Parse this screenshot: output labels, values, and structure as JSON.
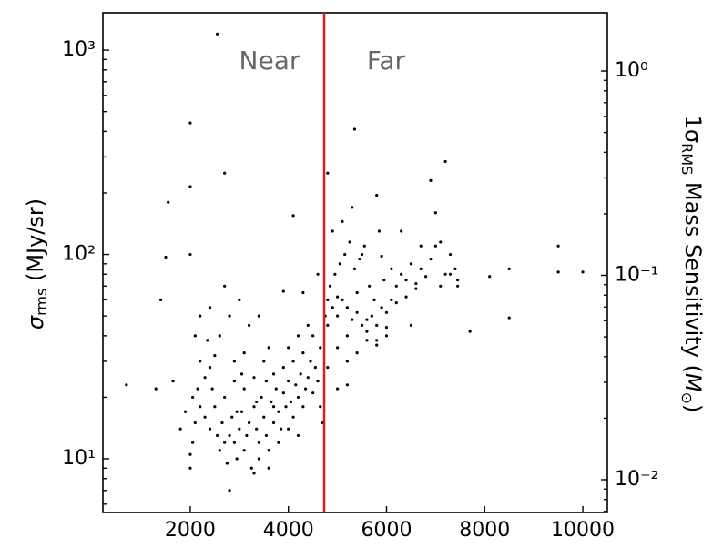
{
  "chart_data": {
    "type": "scatter",
    "ylabel": {
      "symbol": "σ",
      "subscript": "rms",
      "unit": "(MJy/sr)"
    },
    "y2label": {
      "prefix": "1σ",
      "subscript": "RMS",
      "text": "Mass Sensitivity (",
      "symbol": "M",
      "symbol_subscript": "⊙",
      "suffix": ")"
    },
    "color": "#000000",
    "log_y": true,
    "xlim": [
      220,
      10500
    ],
    "xticks": [
      2000,
      4000,
      6000,
      8000,
      10000
    ],
    "ylim": [
      5.46,
      1524
    ],
    "yticks": [
      {
        "value": 10,
        "label": "10¹"
      },
      {
        "value": 100,
        "label": "10²"
      },
      {
        "value": 1000,
        "label": "10³"
      }
    ],
    "y2lim": [
      0.00691,
      1.929
    ],
    "y2ticks": [
      {
        "value": 0.01,
        "label": "10⁻²"
      },
      {
        "value": 0.1,
        "label": "10⁻¹"
      },
      {
        "value": 1,
        "label": "10⁰"
      }
    ],
    "vline": {
      "x": 4730,
      "color": "#e41a1c"
    },
    "annotations": [
      {
        "text": "Near",
        "x": 3615,
        "y": 875
      },
      {
        "text": "Far",
        "x": 5990,
        "y": 875
      }
    ],
    "x": [
      2000,
      2000,
      2050,
      2100,
      2200,
      2050,
      2150,
      2300,
      2400,
      2200,
      2500,
      2400,
      2550,
      2600,
      2700,
      2750,
      2800,
      2850,
      2900,
      2950,
      3000,
      3050,
      3100,
      3150,
      3200,
      3250,
      3300,
      3350,
      3400,
      3450,
      3500,
      3550,
      3600,
      3650,
      3700,
      3750,
      3800,
      3850,
      3900,
      3950,
      4000,
      4050,
      4100,
      4150,
      4200,
      4250,
      4300,
      4350,
      4400,
      4450,
      4500,
      4550,
      4600,
      4650,
      4500,
      4300,
      4100,
      3900,
      3700,
      3500,
      3300,
      3100,
      2900,
      2700,
      2500,
      2300,
      2600,
      2800,
      3000,
      2200,
      2400,
      3200,
      3400,
      3600,
      2700,
      3100,
      3400,
      3800,
      3600,
      3300,
      4000,
      4200,
      3900,
      4300,
      4600,
      4400,
      2900,
      2350,
      2100,
      1900,
      1800,
      1650,
      4700,
      4650,
      3050,
      3550,
      4000,
      4200,
      3700,
      3350,
      2650,
      2450,
      2950,
      4800,
      4900,
      5000,
      5100,
      5200,
      5300,
      5400,
      5500,
      5600,
      5700,
      5800,
      5900,
      6000,
      6100,
      6200,
      6300,
      6400,
      6500,
      6600,
      6700,
      6800,
      6900,
      7000,
      7100,
      7200,
      7300,
      7400,
      7450,
      4850,
      4950,
      5050,
      5150,
      5250,
      5350,
      5450,
      5550,
      5650,
      5750,
      5850,
      5950,
      5000,
      5200,
      5400,
      5600,
      5800,
      6000,
      5100,
      5300,
      4900,
      5500,
      4800,
      5000,
      5200,
      5400,
      5600,
      5800,
      6000,
      6200,
      6400,
      6600,
      4750,
      4800,
      5000,
      5200,
      6300,
      6700,
      7100,
      7300,
      7450,
      6500,
      5900,
      6100,
      2550,
      2000,
      2000,
      2700,
      5350,
      4800,
      7200,
      5800,
      6900,
      1550,
      9500,
      10000,
      9500,
      8500,
      8500,
      8100,
      7700,
      700,
      1400,
      1300,
      1500,
      2000,
      2800,
      4100,
      7000
    ],
    "values": [
      9,
      10.5,
      12,
      15,
      18,
      20,
      22,
      25,
      28,
      30,
      32,
      14,
      13,
      11,
      12,
      9.5,
      13,
      16,
      12,
      10,
      14,
      17,
      11,
      13,
      15,
      9,
      18,
      14,
      12,
      20,
      16,
      13,
      11,
      19,
      15,
      22,
      17,
      14,
      21,
      18,
      24,
      19,
      16,
      23,
      20,
      26,
      18,
      22,
      25,
      30,
      21,
      28,
      24,
      35,
      40,
      33,
      30,
      28,
      26,
      30,
      25,
      22,
      24,
      20,
      18,
      16,
      40,
      50,
      60,
      50,
      55,
      45,
      50,
      35,
      70,
      33,
      10,
      12,
      9,
      8.5,
      14,
      13,
      66,
      65,
      80,
      45,
      30,
      38,
      40,
      17,
      14,
      24,
      15,
      18,
      26,
      24,
      35,
      40,
      18,
      19,
      15,
      22,
      17,
      45,
      55,
      50,
      60,
      40,
      48,
      65,
      45,
      42,
      50,
      38,
      55,
      44,
      60,
      70,
      80,
      75,
      90,
      72,
      85,
      78,
      95,
      110,
      70,
      80,
      100,
      85,
      75,
      70,
      80,
      90,
      100,
      115,
      85,
      95,
      110,
      70,
      60,
      130,
      75,
      35,
      30,
      33,
      38,
      36,
      40,
      145,
      170,
      130,
      100,
      60,
      62,
      55,
      52,
      48,
      45,
      52,
      58,
      62,
      68,
      50,
      28,
      22,
      23,
      130,
      110,
      115,
      80,
      70,
      45,
      98,
      85,
      1200,
      440,
      215,
      250,
      410,
      250,
      285,
      195,
      230,
      180,
      110,
      82,
      82,
      85,
      49,
      78,
      42,
      23,
      60,
      22,
      97,
      100,
      7,
      155,
      160
    ]
  }
}
